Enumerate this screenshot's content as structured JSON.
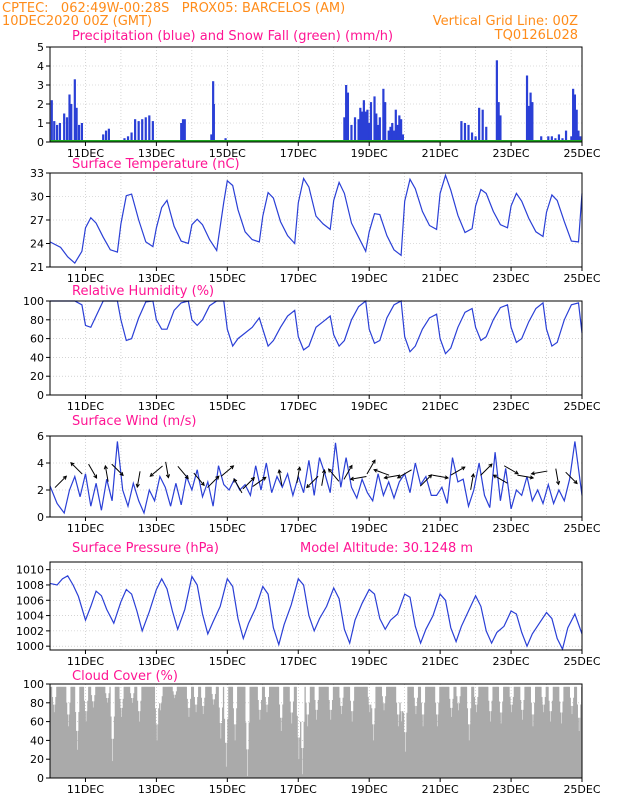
{
  "header": {
    "line1": "CPTEC:   062:49W-00:28S   PROX05: BARCELOS (AM)",
    "line2": "10DEC2020 00Z (GMT)",
    "right1": "Vertical Grid Line: 00Z",
    "right2": "TQ0126L028",
    "color": "#ff8c1a"
  },
  "colors": {
    "title": "#ff1493",
    "line": "#2a3fd6",
    "precip_bar": "#2a3fd6",
    "snow": "#1ea81e",
    "cloud": "#aaaaaa",
    "grid": "#bbbbbb"
  },
  "x_axis": {
    "start": "10DEC2020 00Z",
    "end_day_offset": 15,
    "tick_labels": [
      "11DEC",
      "13DEC",
      "15DEC",
      "17DEC",
      "19DEC",
      "21DEC",
      "23DEC",
      "25DEC"
    ],
    "tick_day_offsets": [
      1,
      3,
      5,
      7,
      9,
      11,
      13,
      15
    ]
  },
  "chart_data": [
    {
      "type": "bar",
      "title": "Precipitation (blue) and Snow Fall (green) (mm/h)",
      "ylim": [
        0,
        5
      ],
      "yticks": [
        "0",
        "1",
        "2",
        "3",
        "4",
        "5"
      ],
      "series": [
        {
          "name": "Precipitation",
          "x_day": [
            0.05,
            0.12,
            0.2,
            0.28,
            0.4,
            0.48,
            0.55,
            0.6,
            0.7,
            0.75,
            0.82,
            0.9,
            1.5,
            1.58,
            1.66,
            2.1,
            2.2,
            2.3,
            2.4,
            2.5,
            2.6,
            2.7,
            2.8,
            2.9,
            3.7,
            3.75,
            3.8,
            4.55,
            4.6,
            4.62,
            4.9,
            4.95,
            8.3,
            8.35,
            8.4,
            8.5,
            8.6,
            8.7,
            8.75,
            8.8,
            8.85,
            8.9,
            8.95,
            9.0,
            9.05,
            9.15,
            9.2,
            9.25,
            9.3,
            9.4,
            9.45,
            9.55,
            9.6,
            9.65,
            9.7,
            9.75,
            9.8,
            9.85,
            9.9,
            9.95,
            11.6,
            11.7,
            11.8,
            11.9,
            12.0,
            12.1,
            12.2,
            12.3,
            12.6,
            12.65,
            12.7,
            13.45,
            13.5,
            13.55,
            13.6,
            13.85,
            13.95,
            14.05,
            14.15,
            14.25,
            14.35,
            14.45,
            14.55,
            14.7,
            14.75,
            14.8,
            14.85,
            14.9,
            14.95
          ],
          "values": [
            2.2,
            1.1,
            0.9,
            1.0,
            1.5,
            1.3,
            2.5,
            2.0,
            3.3,
            1.8,
            0.9,
            1.0,
            0.4,
            0.6,
            0.7,
            0.2,
            0.3,
            0.5,
            1.2,
            1.1,
            1.2,
            1.3,
            1.4,
            1.1,
            1.0,
            1.2,
            1.2,
            0.4,
            3.2,
            2.0,
            0.1,
            0.2,
            1.3,
            3.0,
            2.6,
            0.9,
            1.3,
            1.2,
            1.8,
            1.6,
            2.2,
            1.6,
            1.7,
            1.0,
            2.1,
            2.4,
            1.5,
            0.9,
            1.3,
            2.8,
            2.1,
            0.6,
            0.8,
            1.0,
            0.6,
            1.7,
            0.9,
            1.4,
            1.2,
            0.4,
            1.1,
            1.0,
            0.9,
            0.5,
            0.3,
            1.8,
            1.7,
            0.8,
            4.3,
            2.1,
            1.4,
            3.5,
            1.9,
            2.6,
            2.1,
            0.3,
            0.1,
            0.3,
            0.3,
            0.2,
            0.4,
            0.2,
            0.6,
            0.3,
            2.8,
            2.5,
            1.7,
            0.6,
            0.3
          ]
        },
        {
          "name": "Snow Fall",
          "x_day": [
            0,
            15
          ],
          "values": [
            0,
            0
          ]
        }
      ]
    },
    {
      "type": "line",
      "title": "Surface Temperature (nC)",
      "ylim": [
        21,
        33
      ],
      "yticks": [
        "21",
        "24",
        "27",
        "30",
        "33"
      ],
      "x_day": [
        0,
        0.3,
        0.5,
        0.7,
        0.9,
        1.0,
        1.15,
        1.3,
        1.5,
        1.7,
        1.9,
        2.0,
        2.15,
        2.3,
        2.5,
        2.7,
        2.9,
        3.0,
        3.15,
        3.3,
        3.5,
        3.7,
        3.9,
        4.0,
        4.15,
        4.3,
        4.5,
        4.7,
        4.9,
        5.0,
        5.15,
        5.3,
        5.5,
        5.7,
        5.9,
        6.0,
        6.15,
        6.3,
        6.5,
        6.7,
        6.9,
        7.0,
        7.15,
        7.3,
        7.5,
        7.7,
        7.9,
        8.0,
        8.15,
        8.3,
        8.5,
        8.7,
        8.9,
        9.0,
        9.15,
        9.3,
        9.5,
        9.7,
        9.9,
        10.0,
        10.15,
        10.3,
        10.5,
        10.7,
        10.9,
        11.0,
        11.15,
        11.3,
        11.5,
        11.7,
        11.9,
        12.0,
        12.15,
        12.3,
        12.5,
        12.7,
        12.9,
        13.0,
        13.15,
        13.3,
        13.5,
        13.7,
        13.9,
        14.0,
        14.15,
        14.3,
        14.5,
        14.7,
        14.9,
        15.0
      ],
      "values": [
        24.2,
        23.5,
        22.3,
        21.5,
        23.0,
        26.0,
        27.3,
        26.6,
        24.8,
        23.2,
        22.9,
        26.5,
        30.1,
        30.3,
        27.0,
        24.2,
        23.6,
        26.0,
        28.6,
        29.5,
        26.2,
        24.3,
        24.0,
        26.4,
        27.1,
        26.4,
        24.5,
        23.1,
        29.3,
        32.0,
        31.4,
        28.3,
        25.5,
        24.5,
        24.2,
        27.5,
        30.5,
        29.8,
        26.8,
        25.0,
        24.0,
        29.2,
        32.3,
        31.2,
        27.5,
        26.5,
        25.8,
        29.5,
        31.8,
        30.4,
        26.6,
        24.8,
        23.0,
        25.5,
        27.8,
        27.7,
        25.0,
        23.2,
        22.5,
        29.4,
        32.2,
        31.0,
        28.1,
        26.3,
        25.8,
        30.4,
        32.7,
        30.8,
        27.6,
        25.4,
        25.9,
        28.8,
        30.9,
        30.4,
        28.1,
        26.4,
        26.0,
        28.8,
        30.4,
        29.4,
        27.2,
        25.5,
        24.9,
        28.0,
        30.2,
        29.5,
        26.8,
        24.3,
        24.2,
        30.4
      ]
    },
    {
      "type": "line",
      "title": "Relative Humidity (%)",
      "ylim": [
        0,
        100
      ],
      "yticks": [
        "0",
        "20",
        "40",
        "60",
        "80",
        "100"
      ],
      "x_day": [
        0,
        0.3,
        0.5,
        0.7,
        0.9,
        1.0,
        1.15,
        1.3,
        1.5,
        1.7,
        1.9,
        2.0,
        2.15,
        2.3,
        2.5,
        2.7,
        2.9,
        3.0,
        3.15,
        3.3,
        3.5,
        3.7,
        3.9,
        4.0,
        4.15,
        4.3,
        4.5,
        4.7,
        4.9,
        5.0,
        5.15,
        5.3,
        5.5,
        5.7,
        5.9,
        6.0,
        6.15,
        6.3,
        6.5,
        6.7,
        6.9,
        7.0,
        7.15,
        7.3,
        7.5,
        7.7,
        7.9,
        8.0,
        8.15,
        8.3,
        8.5,
        8.7,
        8.9,
        9.0,
        9.15,
        9.3,
        9.5,
        9.7,
        9.9,
        10.0,
        10.15,
        10.3,
        10.5,
        10.7,
        10.9,
        11.0,
        11.15,
        11.3,
        11.5,
        11.7,
        11.9,
        12.0,
        12.15,
        12.3,
        12.5,
        12.7,
        12.9,
        13.0,
        13.15,
        13.3,
        13.5,
        13.7,
        13.9,
        14.0,
        14.15,
        14.3,
        14.5,
        14.7,
        14.9,
        15.0
      ],
      "values": [
        100,
        100,
        100,
        100,
        96,
        74,
        72,
        84,
        100,
        100,
        100,
        80,
        58,
        60,
        82,
        99,
        100,
        80,
        70,
        70,
        90,
        98,
        100,
        80,
        74,
        80,
        95,
        100,
        100,
        70,
        52,
        60,
        66,
        72,
        82,
        70,
        52,
        58,
        72,
        84,
        90,
        62,
        48,
        52,
        72,
        78,
        84,
        64,
        52,
        58,
        80,
        94,
        100,
        70,
        55,
        58,
        82,
        96,
        100,
        62,
        46,
        52,
        70,
        82,
        86,
        60,
        44,
        50,
        72,
        88,
        92,
        72,
        58,
        62,
        80,
        93,
        96,
        72,
        56,
        60,
        78,
        92,
        98,
        70,
        52,
        56,
        80,
        96,
        98,
        66
      ]
    },
    {
      "type": "line",
      "title": "Surface Wind (m/s)",
      "ylim": [
        0,
        6
      ],
      "yticks": [
        "0",
        "2",
        "4",
        "6"
      ],
      "x_day": [
        0,
        0.2,
        0.4,
        0.55,
        0.7,
        0.85,
        1.0,
        1.15,
        1.3,
        1.45,
        1.6,
        1.75,
        1.9,
        2.05,
        2.2,
        2.35,
        2.5,
        2.65,
        2.8,
        2.95,
        3.1,
        3.25,
        3.4,
        3.55,
        3.7,
        3.85,
        4.0,
        4.15,
        4.3,
        4.45,
        4.6,
        4.75,
        4.9,
        5.05,
        5.2,
        5.35,
        5.5,
        5.65,
        5.8,
        5.95,
        6.1,
        6.25,
        6.4,
        6.55,
        6.7,
        6.85,
        7.0,
        7.15,
        7.3,
        7.45,
        7.6,
        7.75,
        7.9,
        8.05,
        8.2,
        8.35,
        8.5,
        8.65,
        8.8,
        8.95,
        9.1,
        9.25,
        9.4,
        9.55,
        9.7,
        9.85,
        10.0,
        10.15,
        10.3,
        10.45,
        10.6,
        10.75,
        10.9,
        11.05,
        11.2,
        11.35,
        11.5,
        11.65,
        11.8,
        11.95,
        12.1,
        12.25,
        12.4,
        12.55,
        12.7,
        12.85,
        13.0,
        13.15,
        13.3,
        13.45,
        13.6,
        13.75,
        13.9,
        14.05,
        14.2,
        14.35,
        14.5,
        14.65,
        14.8,
        15.0
      ],
      "values": [
        2.3,
        1.0,
        0.3,
        2.0,
        3.0,
        1.5,
        3.2,
        0.8,
        2.5,
        0.5,
        2.8,
        1.2,
        5.6,
        2.0,
        0.8,
        2.5,
        1.2,
        0.3,
        2.0,
        1.2,
        3.0,
        2.2,
        0.8,
        2.5,
        0.9,
        3.0,
        2.0,
        3.5,
        1.5,
        2.6,
        0.8,
        3.8,
        2.4,
        2.0,
        2.8,
        2.0,
        2.4,
        1.6,
        3.8,
        2.0,
        4.0,
        1.8,
        3.0,
        2.2,
        3.2,
        1.6,
        3.0,
        1.8,
        4.2,
        1.6,
        4.4,
        3.2,
        1.8,
        5.5,
        2.2,
        4.4,
        2.2,
        1.4,
        2.8,
        1.8,
        1.2,
        3.2,
        1.6,
        2.6,
        1.4,
        2.6,
        3.2,
        1.8,
        4.0,
        2.4,
        3.0,
        1.6,
        1.6,
        2.2,
        1.0,
        4.4,
        2.6,
        2.8,
        0.8,
        2.0,
        4.0,
        1.6,
        0.7,
        4.8,
        1.2,
        3.6,
        0.6,
        2.0,
        1.6,
        3.0,
        1.2,
        2.0,
        1.0,
        2.4,
        1.0,
        2.0,
        1.2,
        2.8,
        5.6,
        1.6
      ]
    },
    {
      "type": "line",
      "title": "Surface Pressure (hPa)",
      "annotation": "Model Altitude: 30.1248 m",
      "ylim": [
        999.5,
        1011
      ],
      "yticks": [
        "1000",
        "1002",
        "1004",
        "1006",
        "1008",
        "1010"
      ],
      "x_day": [
        0,
        0.2,
        0.35,
        0.5,
        0.65,
        0.8,
        1.0,
        1.15,
        1.3,
        1.45,
        1.6,
        1.8,
        2.0,
        2.15,
        2.3,
        2.45,
        2.6,
        2.8,
        3.0,
        3.15,
        3.3,
        3.45,
        3.6,
        3.8,
        4.0,
        4.15,
        4.3,
        4.45,
        4.6,
        4.8,
        5.0,
        5.15,
        5.3,
        5.45,
        5.6,
        5.8,
        6.0,
        6.15,
        6.3,
        6.45,
        6.6,
        6.8,
        7.0,
        7.15,
        7.3,
        7.45,
        7.6,
        7.8,
        8.0,
        8.15,
        8.3,
        8.45,
        8.6,
        8.8,
        9.0,
        9.15,
        9.3,
        9.45,
        9.6,
        9.8,
        10.0,
        10.15,
        10.3,
        10.45,
        10.6,
        10.8,
        11.0,
        11.15,
        11.3,
        11.45,
        11.6,
        11.8,
        12.0,
        12.15,
        12.3,
        12.45,
        12.6,
        12.8,
        13.0,
        13.15,
        13.3,
        13.45,
        13.6,
        13.8,
        14.0,
        14.15,
        14.3,
        14.45,
        14.6,
        14.8,
        15.0
      ],
      "values": [
        1008.2,
        1008.0,
        1008.8,
        1009.2,
        1008.0,
        1006.5,
        1003.4,
        1005.2,
        1007.2,
        1006.6,
        1004.8,
        1003.0,
        1005.8,
        1007.4,
        1006.8,
        1004.6,
        1002.0,
        1004.5,
        1007.4,
        1008.8,
        1007.5,
        1004.6,
        1002.2,
        1004.8,
        1009.1,
        1008.0,
        1004.2,
        1001.6,
        1003.2,
        1005.2,
        1008.8,
        1007.8,
        1003.6,
        1001.0,
        1003.0,
        1005.0,
        1007.8,
        1006.8,
        1002.4,
        1000.2,
        1002.8,
        1005.4,
        1008.8,
        1008.0,
        1004.0,
        1002.0,
        1003.6,
        1005.2,
        1007.6,
        1006.2,
        1002.2,
        1000.4,
        1003.4,
        1005.6,
        1007.4,
        1006.8,
        1003.6,
        1002.2,
        1003.4,
        1004.2,
        1006.8,
        1006.4,
        1002.6,
        1000.4,
        1002.2,
        1004.0,
        1006.8,
        1006.0,
        1002.4,
        1000.6,
        1002.6,
        1004.6,
        1006.6,
        1005.2,
        1002.0,
        1000.4,
        1001.8,
        1002.6,
        1004.6,
        1004.2,
        1001.8,
        1000.0,
        1001.6,
        1003.0,
        1004.4,
        1003.6,
        1001.0,
        999.6,
        1002.4,
        1004.2,
        1001.6
      ]
    },
    {
      "type": "bar",
      "title": "Cloud Cover (%)",
      "ylim": [
        0,
        100
      ],
      "yticks": [
        "0",
        "20",
        "40",
        "60",
        "80",
        "100"
      ],
      "dips": {
        "x_day": [
          0.1,
          0.5,
          0.75,
          1.0,
          1.2,
          1.6,
          1.75,
          2.0,
          2.3,
          2.5,
          3.0,
          3.1,
          3.5,
          3.9,
          4.1,
          4.3,
          4.6,
          4.8,
          4.95,
          5.2,
          5.55,
          5.9,
          6.1,
          6.5,
          6.8,
          7.0,
          7.1,
          7.25,
          7.5,
          7.9,
          8.2,
          8.5,
          9.0,
          9.1,
          9.4,
          9.8,
          9.9,
          10.0,
          10.3,
          10.5,
          10.9,
          11.3,
          11.5,
          11.8,
          12.0,
          12.4,
          12.7,
          13.0,
          13.3,
          13.6,
          13.9,
          14.1,
          14.4,
          14.7,
          14.9
        ],
        "values": [
          70,
          55,
          30,
          60,
          75,
          80,
          18,
          65,
          80,
          60,
          40,
          72,
          85,
          65,
          70,
          68,
          78,
          42,
          12,
          40,
          2,
          62,
          70,
          50,
          58,
          20,
          4,
          55,
          62,
          62,
          68,
          60,
          70,
          40,
          72,
          55,
          60,
          28,
          68,
          55,
          55,
          65,
          72,
          40,
          70,
          60,
          58,
          70,
          62,
          55,
          70,
          60,
          58,
          68,
          50
        ]
      }
    }
  ],
  "wind_arrows": {
    "x_day": [
      0.3,
      0.75,
      1.2,
      1.6,
      1.9,
      2.5,
      3.0,
      3.3,
      3.75,
      4.2,
      4.6,
      5.0,
      5.3,
      5.6,
      5.9,
      6.5,
      7.0,
      7.4,
      7.7,
      8.0,
      8.4,
      8.7,
      9.05,
      9.35,
      9.65,
      10.0,
      10.6,
      11.0,
      11.5,
      11.9,
      12.3,
      12.7,
      13.0,
      13.4,
      13.8,
      14.3,
      14.7
    ],
    "y": [
      2.6,
      3.6,
      3.4,
      3.2,
      3.5,
      2.8,
      3.4,
      3.5,
      3.3,
      2.8,
      2.6,
      3.4,
      2.3,
      2.5,
      2.6,
      2.9,
      3.1,
      2.6,
      2.9,
      3.1,
      3.3,
      2.9,
      3.7,
      3.3,
      3.0,
      3.2,
      2.7,
      3.0,
      3.4,
      2.6,
      3.5,
      2.8,
      3.5,
      3.0,
      3.3,
      3.0,
      2.9
    ],
    "dir_deg": [
      45,
      135,
      -60,
      100,
      -45,
      -100,
      -140,
      -80,
      -50,
      -50,
      45,
      40,
      120,
      45,
      35,
      100,
      80,
      -135,
      80,
      130,
      60,
      -170,
      60,
      160,
      -170,
      -150,
      45,
      -10,
      30,
      80,
      45,
      150,
      -30,
      -10,
      -170,
      -80,
      -45
    ]
  }
}
